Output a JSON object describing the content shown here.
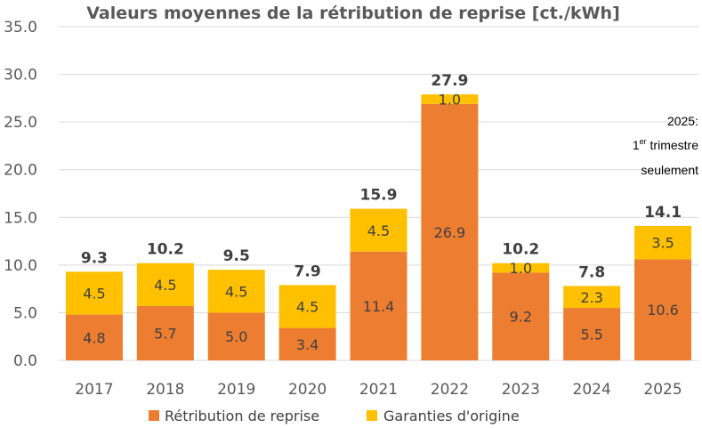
{
  "chart_data": {
    "type": "bar",
    "stacked": true,
    "title": "Valeurs moyennes de la rétribution de reprise [ct./kWh]",
    "categories": [
      "2017",
      "2018",
      "2019",
      "2020",
      "2021",
      "2022",
      "2023",
      "2024",
      "2025"
    ],
    "series": [
      {
        "name": "Rétribution de reprise",
        "color": "#ED7D31",
        "values": [
          4.8,
          5.7,
          5.0,
          3.4,
          11.4,
          26.9,
          9.2,
          5.5,
          10.6
        ],
        "labels": [
          "4.8",
          "5.7",
          "5.0",
          "3.4",
          "11.4",
          "26.9",
          "9.2",
          "5.5",
          "10.6"
        ]
      },
      {
        "name": "Garanties d'origine",
        "color": "#FFC000",
        "values": [
          4.5,
          4.5,
          4.5,
          4.5,
          4.5,
          1.0,
          1.0,
          2.3,
          3.5
        ],
        "labels": [
          "4.5",
          "4.5",
          "4.5",
          "4.5",
          "4.5",
          "1.0",
          "1.0",
          "2.3",
          "3.5"
        ]
      }
    ],
    "totals": [
      "9.3",
      "10.2",
      "9.5",
      "7.9",
      "15.9",
      "27.9",
      "10.2",
      "7.8",
      "14.1"
    ],
    "ylim": [
      0,
      35
    ],
    "yticks": [
      "0.0",
      "5.0",
      "10.0",
      "15.0",
      "20.0",
      "25.0",
      "30.0",
      "35.0"
    ],
    "grid": true,
    "legend_position": "bottom",
    "annotation": {
      "line1": "2025:",
      "line2_prefix": "1",
      "line2_sup": "er",
      "line2_suffix": " trimestre",
      "line3": "seulement"
    }
  }
}
